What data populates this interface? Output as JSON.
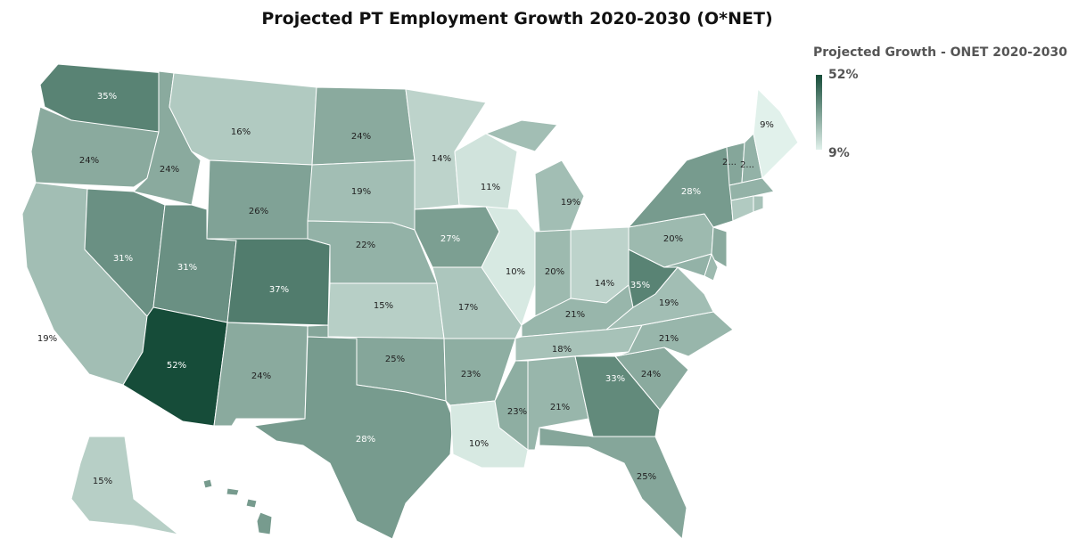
{
  "chart_data": {
    "type": "choropleth",
    "title": "Projected PT Employment Growth 2020-2030 (O*NET)",
    "legend": {
      "title": "Projected Growth - ONET 2020-2030",
      "max_label": "52%",
      "min_label": "9%",
      "min": 9,
      "max": 52,
      "placement": "top-right"
    },
    "colors": {
      "low": "#e1f1eb",
      "high": "#164c39",
      "border": "#ffffff"
    },
    "states": [
      {
        "id": "WA",
        "value": 35,
        "label": "35%"
      },
      {
        "id": "OR",
        "value": 24,
        "label": "24%"
      },
      {
        "id": "CA",
        "value": 19,
        "label": "19%"
      },
      {
        "id": "ID",
        "value": 24,
        "label": "24%"
      },
      {
        "id": "NV",
        "value": 31,
        "label": "31%"
      },
      {
        "id": "MT",
        "value": 16,
        "label": "16%"
      },
      {
        "id": "WY",
        "value": 26,
        "label": "26%"
      },
      {
        "id": "UT",
        "value": 31,
        "label": "31%"
      },
      {
        "id": "AZ",
        "value": 52,
        "label": "52%"
      },
      {
        "id": "CO",
        "value": 37,
        "label": "37%"
      },
      {
        "id": "NM",
        "value": 24,
        "label": "24%"
      },
      {
        "id": "ND",
        "value": 24,
        "label": "24%"
      },
      {
        "id": "SD",
        "value": 19,
        "label": "19%"
      },
      {
        "id": "NE",
        "value": 22,
        "label": "22%"
      },
      {
        "id": "KS",
        "value": 15,
        "label": "15%"
      },
      {
        "id": "OK",
        "value": 25,
        "label": "25%"
      },
      {
        "id": "TX",
        "value": 28,
        "label": "28%"
      },
      {
        "id": "MN",
        "value": 14,
        "label": "14%"
      },
      {
        "id": "IA",
        "value": 27,
        "label": "27%"
      },
      {
        "id": "MO",
        "value": 17,
        "label": "17%"
      },
      {
        "id": "AR",
        "value": 23,
        "label": "23%"
      },
      {
        "id": "LA",
        "value": 10,
        "label": "10%"
      },
      {
        "id": "WI",
        "value": 11,
        "label": "11%"
      },
      {
        "id": "IL",
        "value": 10,
        "label": "10%"
      },
      {
        "id": "MI",
        "value": 19,
        "label": "19%"
      },
      {
        "id": "IN",
        "value": 20,
        "label": "20%"
      },
      {
        "id": "OH",
        "value": 14,
        "label": "14%"
      },
      {
        "id": "KY",
        "value": 21,
        "label": "21%"
      },
      {
        "id": "TN",
        "value": 18,
        "label": "18%"
      },
      {
        "id": "MS",
        "value": 23,
        "label": "23%"
      },
      {
        "id": "AL",
        "value": 21,
        "label": "21%"
      },
      {
        "id": "GA",
        "value": 33,
        "label": "33%"
      },
      {
        "id": "FL",
        "value": 25,
        "label": "25%"
      },
      {
        "id": "SC",
        "value": 24,
        "label": "24%"
      },
      {
        "id": "NC",
        "value": 21,
        "label": "21%"
      },
      {
        "id": "VA",
        "value": 19,
        "label": "19%"
      },
      {
        "id": "WV",
        "value": 35,
        "label": "35%"
      },
      {
        "id": "PA",
        "value": 20,
        "label": "20%"
      },
      {
        "id": "NY",
        "value": 28,
        "label": "28%"
      },
      {
        "id": "VT",
        "value": 25,
        "label": "2..."
      },
      {
        "id": "NH",
        "value": 22,
        "label": "2..."
      },
      {
        "id": "ME",
        "value": 9,
        "label": "9%"
      },
      {
        "id": "MA",
        "value": 22,
        "label": ""
      },
      {
        "id": "CT",
        "value": 16,
        "label": ""
      },
      {
        "id": "RI",
        "value": 18,
        "label": ""
      },
      {
        "id": "NJ",
        "value": 24,
        "label": ""
      },
      {
        "id": "MD",
        "value": 22,
        "label": ""
      },
      {
        "id": "DE",
        "value": 20,
        "label": ""
      },
      {
        "id": "AK",
        "value": 15,
        "label": "15%"
      },
      {
        "id": "HI",
        "value": 28,
        "label": ""
      }
    ]
  }
}
